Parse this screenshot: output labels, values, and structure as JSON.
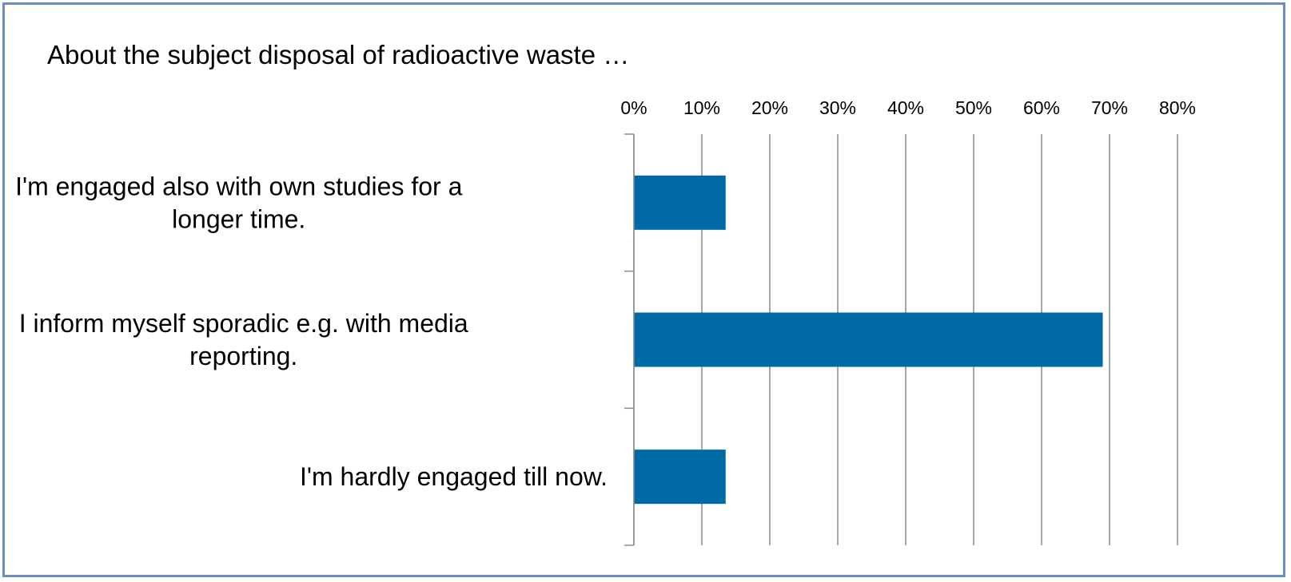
{
  "chart_data": {
    "type": "bar",
    "orientation": "horizontal",
    "title": "About the subject disposal of radioactive waste …",
    "xlabel": "",
    "ylabel": "",
    "categories": [
      "I'm engaged also with own studies for a longer time.",
      "I inform myself sporadic e.g. with media reporting.",
      "I'm hardly engaged till now."
    ],
    "category_lines": [
      [
        "I'm engaged also with own studies for a",
        "longer time."
      ],
      [
        "I inform myself sporadic e.g. with media",
        "reporting."
      ],
      [
        "I'm hardly engaged till now."
      ]
    ],
    "values": [
      13.5,
      69,
      13.5
    ],
    "xlim": [
      0,
      80
    ],
    "ticks": [
      0,
      10,
      20,
      30,
      40,
      50,
      60,
      70,
      80
    ],
    "tick_labels": [
      "0%",
      "10%",
      "20%",
      "30%",
      "40%",
      "50%",
      "60%",
      "70%",
      "80%"
    ],
    "axis_position": "top",
    "grid": true,
    "legend": "none",
    "colors": {
      "bar": "#006aa7",
      "grid": "#8c8c8c",
      "frame": "#6b8fc3"
    }
  }
}
